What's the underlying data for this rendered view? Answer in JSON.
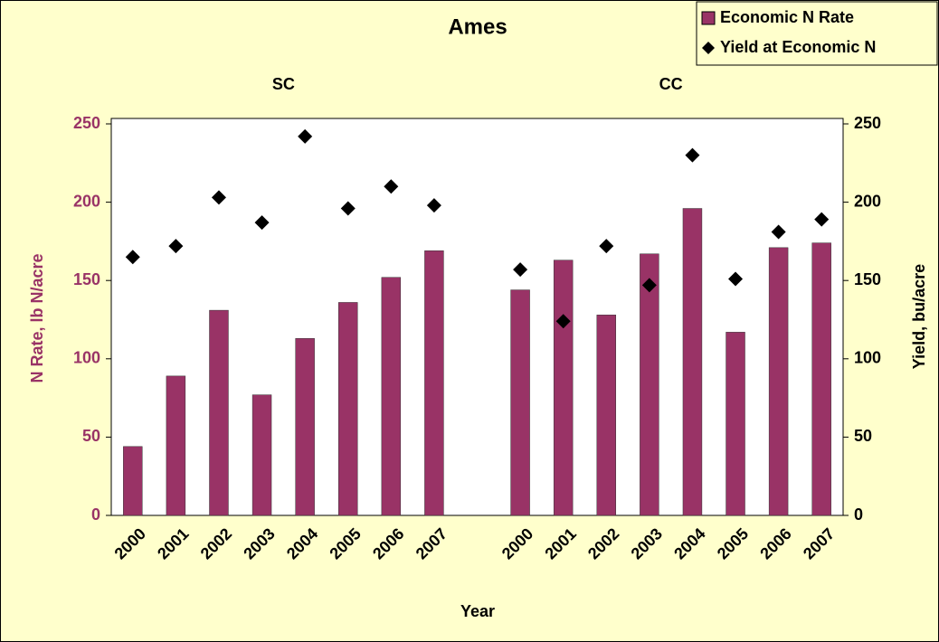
{
  "chart_data": {
    "type": "bar",
    "title": "Ames",
    "group_labels": [
      "SC",
      "CC"
    ],
    "x_label": "Year",
    "y_label": "N Rate, lb N/acre",
    "y2_label": "Yield, bu/acre",
    "categories": [
      "2000",
      "2001",
      "2002",
      "2003",
      "2004",
      "2005",
      "2006",
      "2007",
      null,
      "2000",
      "2001",
      "2002",
      "2003",
      "2004",
      "2005",
      "2006",
      "2007"
    ],
    "series": [
      {
        "name": "Economic N Rate",
        "type": "bar",
        "color": "#993366",
        "values": [
          44,
          89,
          131,
          77,
          113,
          136,
          152,
          169,
          null,
          144,
          163,
          128,
          167,
          196,
          117,
          171,
          174
        ]
      },
      {
        "name": "Yield at Economic N",
        "type": "scatter",
        "color": "#000000",
        "axis": "y2",
        "values": [
          165,
          172,
          203,
          187,
          242,
          196,
          210,
          198,
          null,
          157,
          124,
          172,
          147,
          230,
          151,
          181,
          189
        ]
      }
    ],
    "ylim": [
      0,
      250
    ],
    "yticks": [
      0,
      50,
      100,
      150,
      200,
      250
    ],
    "y2lim": [
      0,
      250
    ],
    "y2ticks": [
      0,
      50,
      100,
      150,
      200,
      250
    ],
    "legend": "top-right"
  }
}
